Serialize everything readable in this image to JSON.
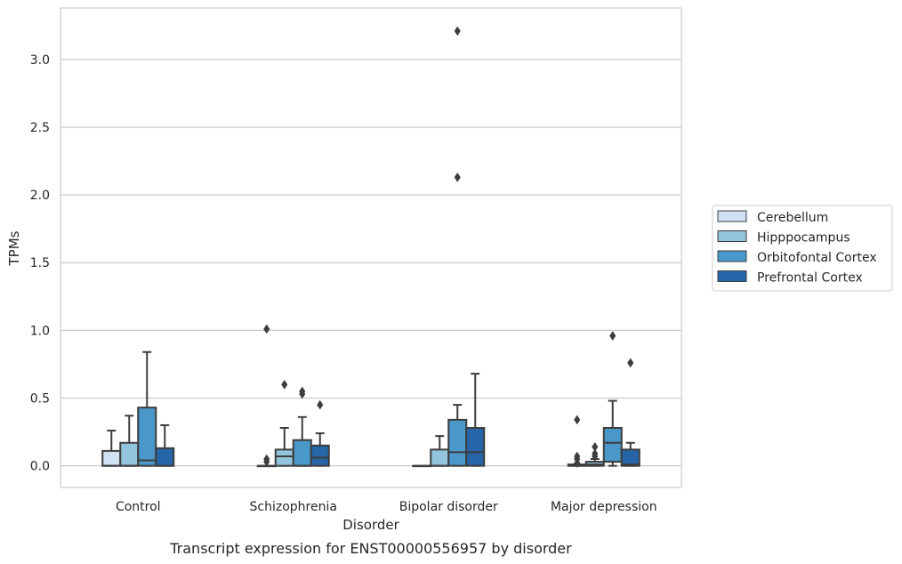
{
  "chart_data": {
    "type": "box",
    "caption": "Transcript expression for ENST00000556957 by disorder",
    "xlabel": "Disorder",
    "ylabel": "TPMs",
    "ylim": [
      -0.16,
      3.38
    ],
    "yticks": [
      0.0,
      0.5,
      1.0,
      1.5,
      2.0,
      2.5,
      3.0
    ],
    "ytick_labels": [
      "0.0",
      "0.5",
      "1.0",
      "1.5",
      "2.0",
      "2.5",
      "3.0"
    ],
    "grid": "horizontal",
    "legend_position": "right",
    "categories": [
      "Control",
      "Schizophrenia",
      "Bipolar disorder",
      "Major depression"
    ],
    "series": [
      {
        "name": "Cerebellum",
        "color": "#cfe1f2",
        "boxes": [
          {
            "whisker_low": 0.0,
            "q1": 0.0,
            "median": 0.0,
            "q3": 0.11,
            "whisker_high": 0.26,
            "outliers": []
          },
          {
            "whisker_low": 0.0,
            "q1": 0.0,
            "median": 0.0,
            "q3": 0.0,
            "whisker_high": 0.0,
            "outliers": [
              0.03,
              0.05,
              1.01
            ]
          },
          {
            "whisker_low": 0.0,
            "q1": 0.0,
            "median": 0.0,
            "q3": 0.0,
            "whisker_high": 0.0,
            "outliers": []
          },
          {
            "whisker_low": 0.0,
            "q1": 0.0,
            "median": 0.0,
            "q3": 0.01,
            "whisker_high": 0.01,
            "outliers": [
              0.02,
              0.05,
              0.07,
              0.34
            ]
          }
        ]
      },
      {
        "name": "Hipppocampus",
        "color": "#93c4de",
        "boxes": [
          {
            "whisker_low": 0.0,
            "q1": 0.0,
            "median": 0.0,
            "q3": 0.17,
            "whisker_high": 0.37,
            "outliers": []
          },
          {
            "whisker_low": 0.0,
            "q1": 0.0,
            "median": 0.07,
            "q3": 0.12,
            "whisker_high": 0.28,
            "outliers": [
              0.6
            ]
          },
          {
            "whisker_low": 0.0,
            "q1": 0.0,
            "median": 0.0,
            "q3": 0.12,
            "whisker_high": 0.22,
            "outliers": []
          },
          {
            "whisker_low": 0.0,
            "q1": 0.0,
            "median": 0.01,
            "q3": 0.03,
            "whisker_high": 0.05,
            "outliers": [
              0.07,
              0.09,
              0.14
            ]
          }
        ]
      },
      {
        "name": "Orbitofontal Cortex",
        "color": "#4a98c9",
        "boxes": [
          {
            "whisker_low": 0.0,
            "q1": 0.0,
            "median": 0.04,
            "q3": 0.43,
            "whisker_high": 0.84,
            "outliers": []
          },
          {
            "whisker_low": 0.0,
            "q1": 0.0,
            "median": 0.0,
            "q3": 0.19,
            "whisker_high": 0.36,
            "outliers": [
              0.53,
              0.55
            ]
          },
          {
            "whisker_low": 0.0,
            "q1": 0.0,
            "median": 0.1,
            "q3": 0.34,
            "whisker_high": 0.45,
            "outliers": [
              2.13,
              3.21
            ]
          },
          {
            "whisker_low": 0.0,
            "q1": 0.03,
            "median": 0.17,
            "q3": 0.28,
            "whisker_high": 0.48,
            "outliers": [
              0.96
            ]
          }
        ]
      },
      {
        "name": "Prefrontal Cortex",
        "color": "#2565a8",
        "boxes": [
          {
            "whisker_low": 0.0,
            "q1": 0.0,
            "median": 0.0,
            "q3": 0.13,
            "whisker_high": 0.3,
            "outliers": []
          },
          {
            "whisker_low": 0.0,
            "q1": 0.0,
            "median": 0.06,
            "q3": 0.15,
            "whisker_high": 0.24,
            "outliers": [
              0.45
            ]
          },
          {
            "whisker_low": 0.0,
            "q1": 0.0,
            "median": 0.1,
            "q3": 0.28,
            "whisker_high": 0.68,
            "outliers": []
          },
          {
            "whisker_low": 0.0,
            "q1": 0.0,
            "median": 0.01,
            "q3": 0.12,
            "whisker_high": 0.17,
            "outliers": [
              0.76
            ]
          }
        ]
      }
    ]
  }
}
